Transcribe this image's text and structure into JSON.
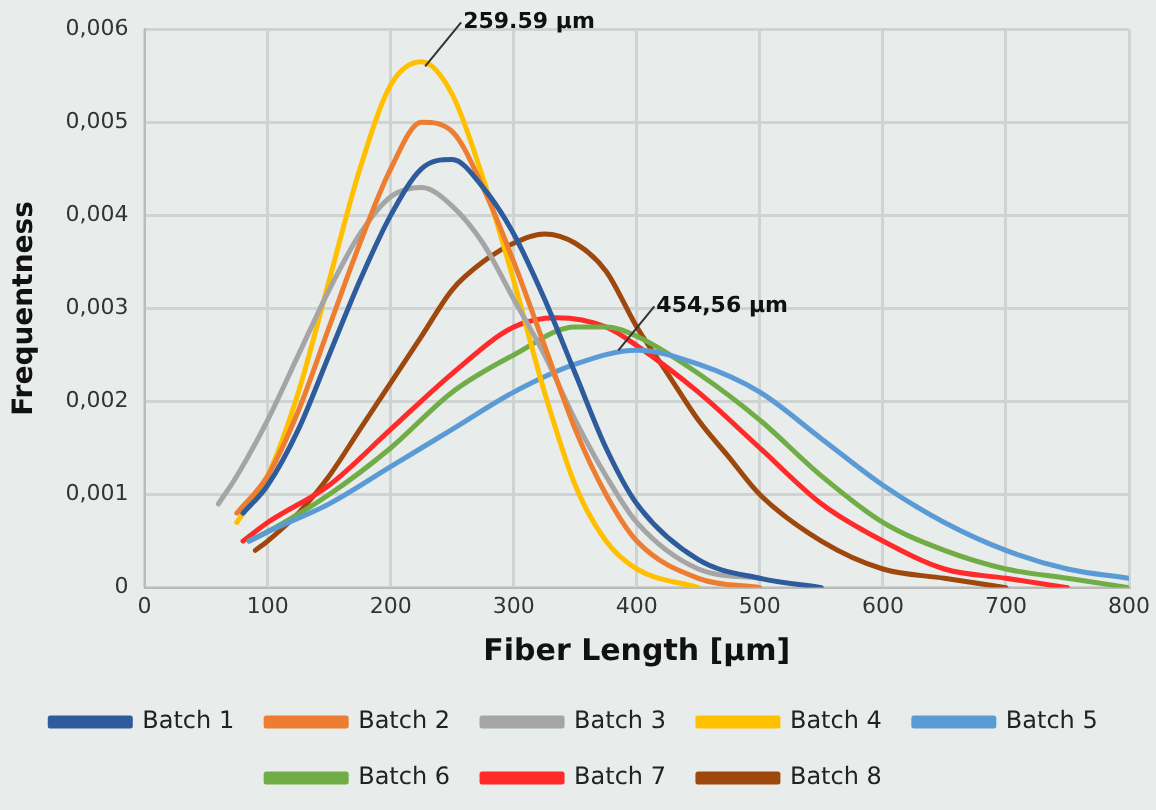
{
  "chart_data": {
    "type": "line",
    "xlabel": "Fiber Length [µm]",
    "ylabel": "Frequentness",
    "xlim": [
      0,
      800
    ],
    "xticks": [
      0,
      100,
      200,
      300,
      400,
      500,
      600,
      700,
      800
    ],
    "ylim": [
      0,
      0.006
    ],
    "yticks": [
      {
        "value": 0,
        "label": "0"
      },
      {
        "value": 0.001,
        "label": "0,001"
      },
      {
        "value": 0.002,
        "label": "0,002"
      },
      {
        "value": 0.003,
        "label": "0,003"
      },
      {
        "value": 0.004,
        "label": "0,004"
      },
      {
        "value": 0.005,
        "label": "0,005"
      },
      {
        "value": 0.006,
        "label": "0,006"
      }
    ],
    "grid": true,
    "legend": "bottom",
    "marker": "none",
    "line_style": "solid",
    "annotations": [
      {
        "text": "259.59 µm",
        "x": 228,
        "y": 0.0056
      },
      {
        "text": "454,56 µm",
        "x": 385,
        "y": 0.00255
      }
    ],
    "series": [
      {
        "name": "Batch 1",
        "color": "#2e5b9c",
        "x": [
          80,
          100,
          125,
          150,
          175,
          200,
          225,
          250,
          275,
          300,
          325,
          350,
          375,
          400,
          450,
          500,
          550
        ],
        "values": [
          0.0008,
          0.0011,
          0.0017,
          0.0025,
          0.0033,
          0.004,
          0.0045,
          0.0046,
          0.0043,
          0.0038,
          0.0031,
          0.0023,
          0.0015,
          0.0009,
          0.0003,
          0.0001,
          0
        ]
      },
      {
        "name": "Batch 2",
        "color": "#ed7d31",
        "x": [
          75,
          100,
          125,
          150,
          175,
          200,
          225,
          250,
          275,
          300,
          325,
          350,
          375,
          400,
          450,
          500
        ],
        "values": [
          0.0008,
          0.0012,
          0.0019,
          0.0028,
          0.0037,
          0.0045,
          0.005,
          0.0049,
          0.0043,
          0.0035,
          0.0026,
          0.0017,
          0.001,
          0.0005,
          0.0001,
          0
        ]
      },
      {
        "name": "Batch 3",
        "color": "#a5a5a5",
        "x": [
          60,
          75,
          100,
          125,
          150,
          175,
          200,
          225,
          250,
          275,
          300,
          325,
          350,
          375,
          400,
          450,
          500
        ],
        "values": [
          0.0009,
          0.0012,
          0.0018,
          0.0025,
          0.0032,
          0.0038,
          0.0042,
          0.0043,
          0.0041,
          0.0037,
          0.0031,
          0.0025,
          0.0018,
          0.0012,
          0.0007,
          0.0002,
          0.0001
        ]
      },
      {
        "name": "Batch 4",
        "color": "#ffc000",
        "x": [
          75,
          100,
          125,
          150,
          175,
          200,
          225,
          250,
          275,
          300,
          325,
          350,
          375,
          400,
          450
        ],
        "values": [
          0.0007,
          0.0012,
          0.0021,
          0.0033,
          0.0045,
          0.0054,
          0.00565,
          0.0053,
          0.0044,
          0.0033,
          0.0021,
          0.0011,
          0.0005,
          0.0002,
          0
        ]
      },
      {
        "name": "Batch 5",
        "color": "#5b9bd5",
        "x": [
          85,
          100,
          150,
          200,
          250,
          300,
          350,
          400,
          450,
          500,
          550,
          600,
          650,
          700,
          750,
          800
        ],
        "values": [
          0.0005,
          0.0006,
          0.0009,
          0.0013,
          0.0017,
          0.0021,
          0.0024,
          0.00255,
          0.0024,
          0.0021,
          0.0016,
          0.0011,
          0.0007,
          0.0004,
          0.0002,
          0.0001
        ]
      },
      {
        "name": "Batch 6",
        "color": "#70ad47",
        "x": [
          85,
          100,
          150,
          200,
          250,
          300,
          350,
          375,
          400,
          450,
          500,
          550,
          600,
          650,
          700,
          750,
          800
        ],
        "values": [
          0.0005,
          0.0006,
          0.001,
          0.0015,
          0.0021,
          0.0025,
          0.0028,
          0.0028,
          0.0027,
          0.0023,
          0.0018,
          0.0012,
          0.0007,
          0.0004,
          0.0002,
          0.0001,
          0
        ]
      },
      {
        "name": "Batch 7",
        "color": "#ff2a2a",
        "x": [
          80,
          100,
          150,
          200,
          250,
          300,
          335,
          375,
          400,
          450,
          500,
          550,
          600,
          650,
          700,
          750
        ],
        "values": [
          0.0005,
          0.0007,
          0.0011,
          0.0017,
          0.0023,
          0.0028,
          0.0029,
          0.0028,
          0.0026,
          0.0021,
          0.0015,
          0.0009,
          0.0005,
          0.0002,
          0.0001,
          0
        ]
      },
      {
        "name": "Batch 8",
        "color": "#9e480e",
        "x": [
          90,
          100,
          125,
          150,
          175,
          200,
          225,
          250,
          275,
          300,
          325,
          350,
          375,
          400,
          425,
          450,
          475,
          500,
          550,
          600,
          650,
          700
        ],
        "values": [
          0.0004,
          0.0005,
          0.0008,
          0.0012,
          0.0017,
          0.0022,
          0.0027,
          0.0032,
          0.0035,
          0.0037,
          0.0038,
          0.0037,
          0.0034,
          0.0028,
          0.0023,
          0.0018,
          0.0014,
          0.001,
          0.0005,
          0.0002,
          0.0001,
          0
        ]
      }
    ]
  }
}
